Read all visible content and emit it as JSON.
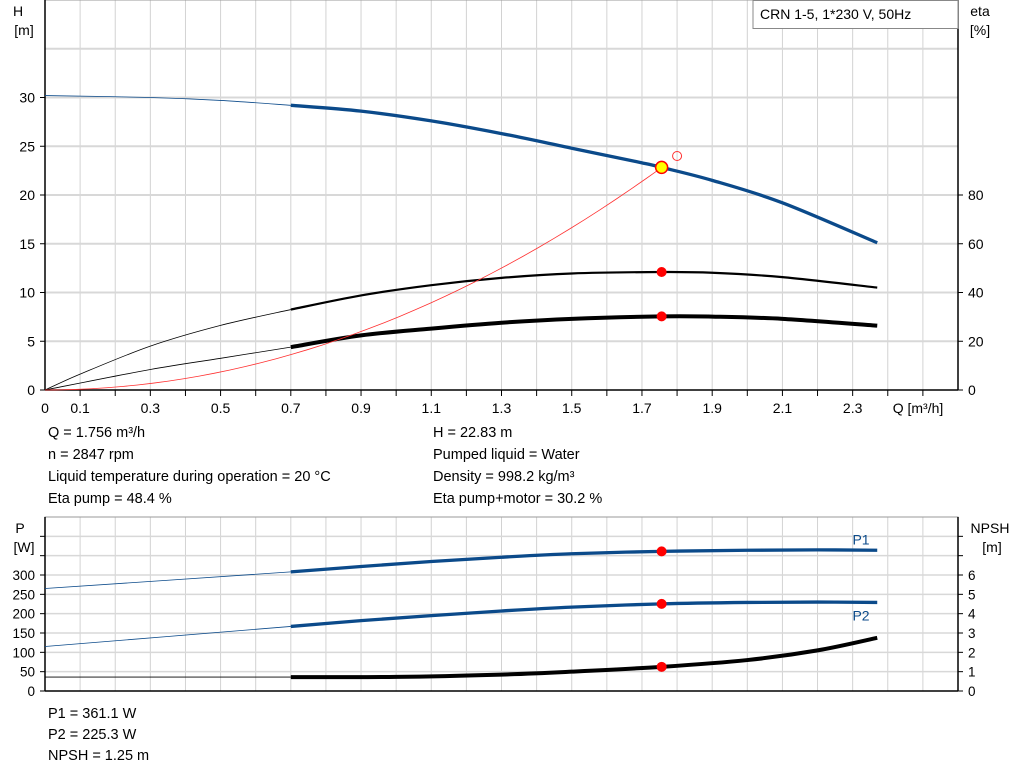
{
  "chart_data": [
    {
      "type": "line",
      "title": "CRN 1-5, 1*230 V, 50Hz",
      "xlabel": "Q [m³/h]",
      "ylabel": "H\n[m]",
      "y2label": "eta\n[%]",
      "xlim": [
        0,
        2.6
      ],
      "ylim": [
        0,
        40
      ],
      "y2lim": [
        0,
        160
      ],
      "xticks": [
        "0",
        "0.1",
        "0.3",
        "0.5",
        "0.7",
        "0.9",
        "1.1",
        "1.3",
        "1.5",
        "1.7",
        "1.9",
        "2.1",
        "2.3"
      ],
      "yticks": [
        0,
        5,
        10,
        15,
        20,
        25,
        30
      ],
      "y2ticks": [
        0,
        20,
        40,
        60,
        80
      ],
      "grid": true,
      "series": [
        {
          "key": "H",
          "axis": "left",
          "color": "#0b4a8a",
          "thin_until": 0.7,
          "x": [
            0,
            0.3,
            0.5,
            0.7,
            0.9,
            1.1,
            1.3,
            1.5,
            1.7,
            1.756,
            1.9,
            2.1,
            2.37
          ],
          "y": [
            30.2,
            30.0,
            29.7,
            29.2,
            28.6,
            27.6,
            26.3,
            24.8,
            23.3,
            22.83,
            21.5,
            19.2,
            15.1
          ]
        },
        {
          "key": "eta_pump",
          "axis": "right",
          "color": "#000000",
          "thin_until": 0.7,
          "x": [
            0,
            0.1,
            0.3,
            0.5,
            0.7,
            0.9,
            1.1,
            1.3,
            1.5,
            1.756,
            1.9,
            2.1,
            2.37
          ],
          "y": [
            0,
            6.5,
            18,
            26.5,
            33,
            38.8,
            43,
            46,
            47.8,
            48.4,
            48.1,
            46.3,
            42
          ]
        },
        {
          "key": "eta_pump_motor",
          "axis": "right",
          "color": "#000000",
          "thin_until": 0.7,
          "bold": true,
          "x": [
            0,
            0.3,
            0.5,
            0.7,
            0.9,
            1.1,
            1.3,
            1.5,
            1.756,
            1.9,
            2.1,
            2.37
          ],
          "y": [
            0,
            8.4,
            13,
            17.6,
            22.4,
            25.2,
            27.6,
            29.2,
            30.2,
            30.1,
            29.2,
            26.4
          ]
        },
        {
          "key": "system_curve",
          "axis": "left",
          "color": "#ff3030",
          "type": "quadratic",
          "k": 7.4,
          "x_end": 1.756
        }
      ],
      "duty_point": {
        "Q": 1.756,
        "H": 22.83,
        "color": "#ffff00"
      },
      "open_marker": {
        "Q": 1.8,
        "H": 24
      },
      "markers": [
        {
          "series": "eta_pump",
          "x": 1.756,
          "y": 48.4
        },
        {
          "series": "eta_pump_motor",
          "x": 1.756,
          "y": 30.2
        }
      ]
    },
    {
      "type": "line",
      "ylabel": "P\n[W]",
      "y2label": "NPSH\n[m]",
      "xlim": [
        0,
        2.6
      ],
      "ylim": [
        0,
        450
      ],
      "y2lim": [
        0,
        9
      ],
      "yticks": [
        0,
        50,
        100,
        150,
        200,
        250,
        300
      ],
      "y2ticks": [
        0,
        1,
        2,
        3,
        4,
        5,
        6
      ],
      "grid": true,
      "series": [
        {
          "name": "P1",
          "axis": "left",
          "color": "#0b4a8a",
          "thin_until": 0.7,
          "x": [
            0,
            0.7,
            0.9,
            1.1,
            1.3,
            1.5,
            1.756,
            2.0,
            2.2,
            2.37
          ],
          "y": [
            265,
            308,
            322,
            335,
            346,
            355,
            361.1,
            364,
            365,
            364
          ]
        },
        {
          "name": "P2",
          "axis": "left",
          "color": "#0b4a8a",
          "thin_until": 0.7,
          "x": [
            0,
            0.7,
            0.9,
            1.1,
            1.3,
            1.5,
            1.756,
            2.0,
            2.2,
            2.37
          ],
          "y": [
            115,
            167,
            182,
            195,
            207,
            217,
            225.3,
            229,
            230,
            229
          ]
        },
        {
          "key": "NPSH",
          "axis": "right",
          "color": "#000000",
          "thin_until": 0.7,
          "bold": true,
          "x": [
            0,
            0.3,
            0.7,
            1.0,
            1.3,
            1.5,
            1.756,
            2.0,
            2.2,
            2.37
          ],
          "y": [
            0.72,
            0.72,
            0.72,
            0.73,
            0.85,
            1.0,
            1.25,
            1.6,
            2.1,
            2.75
          ]
        }
      ],
      "markers": [
        {
          "series": "P1",
          "x": 1.756,
          "y": 361.1
        },
        {
          "series": "P2",
          "x": 1.756,
          "y": 225.3
        },
        {
          "series": "NPSH",
          "x": 1.756,
          "y": 1.25
        }
      ]
    }
  ],
  "info_top": {
    "q": "Q = 1.756 m³/h",
    "n": "n = 2847 rpm",
    "temp": "Liquid temperature during operation = 20 °C",
    "eta_pump": "Eta pump = 48.4 %",
    "h": "H = 22.83 m",
    "liquid": "Pumped liquid = Water",
    "density": "Density = 998.2 kg/m³",
    "eta_pm": "Eta pump+motor = 30.2 %"
  },
  "info_bottom": {
    "p1": "P1 = 361.1 W",
    "p2": "P2 = 225.3 W",
    "npsh": "NPSH = 1.25 m"
  }
}
